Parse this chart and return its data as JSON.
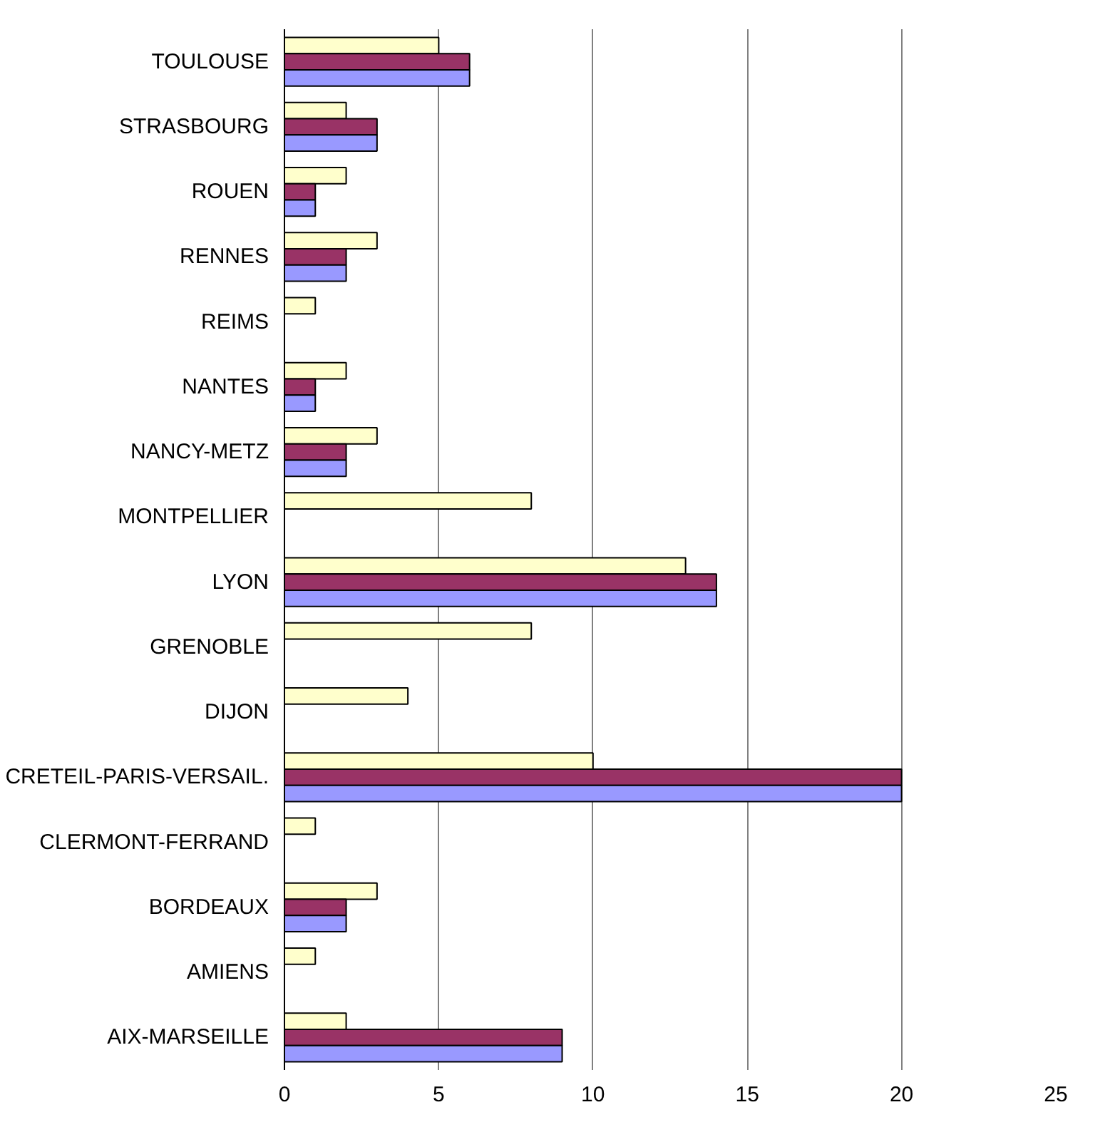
{
  "chart_data": {
    "type": "bar",
    "orientation": "horizontal",
    "categories": [
      "TOULOUSE",
      "STRASBOURG",
      "ROUEN",
      "RENNES",
      "REIMS",
      "NANTES",
      "NANCY-METZ",
      "MONTPELLIER",
      "LYON",
      "GRENOBLE",
      "DIJON",
      "CRETEIL-PARIS-VERSAIL.",
      "CLERMONT-FERRAND",
      "BORDEAUX",
      "AMIENS",
      "AIX-MARSEILLE"
    ],
    "series": [
      {
        "color": "#ffffcc",
        "values": [
          5,
          2,
          2,
          3,
          1,
          2,
          3,
          8,
          13,
          8,
          4,
          10,
          1,
          3,
          1,
          2
        ]
      },
      {
        "color": "#993366",
        "values": [
          6,
          3,
          1,
          2,
          null,
          1,
          2,
          null,
          14,
          null,
          null,
          20,
          null,
          2,
          null,
          9
        ]
      },
      {
        "color": "#9999ff",
        "values": [
          6,
          3,
          1,
          2,
          null,
          1,
          2,
          null,
          14,
          null,
          null,
          20,
          null,
          2,
          null,
          9
        ]
      }
    ],
    "xlim": [
      0,
      25
    ],
    "xticks": [
      0,
      5,
      10,
      15,
      20,
      25
    ],
    "grid": "x"
  }
}
